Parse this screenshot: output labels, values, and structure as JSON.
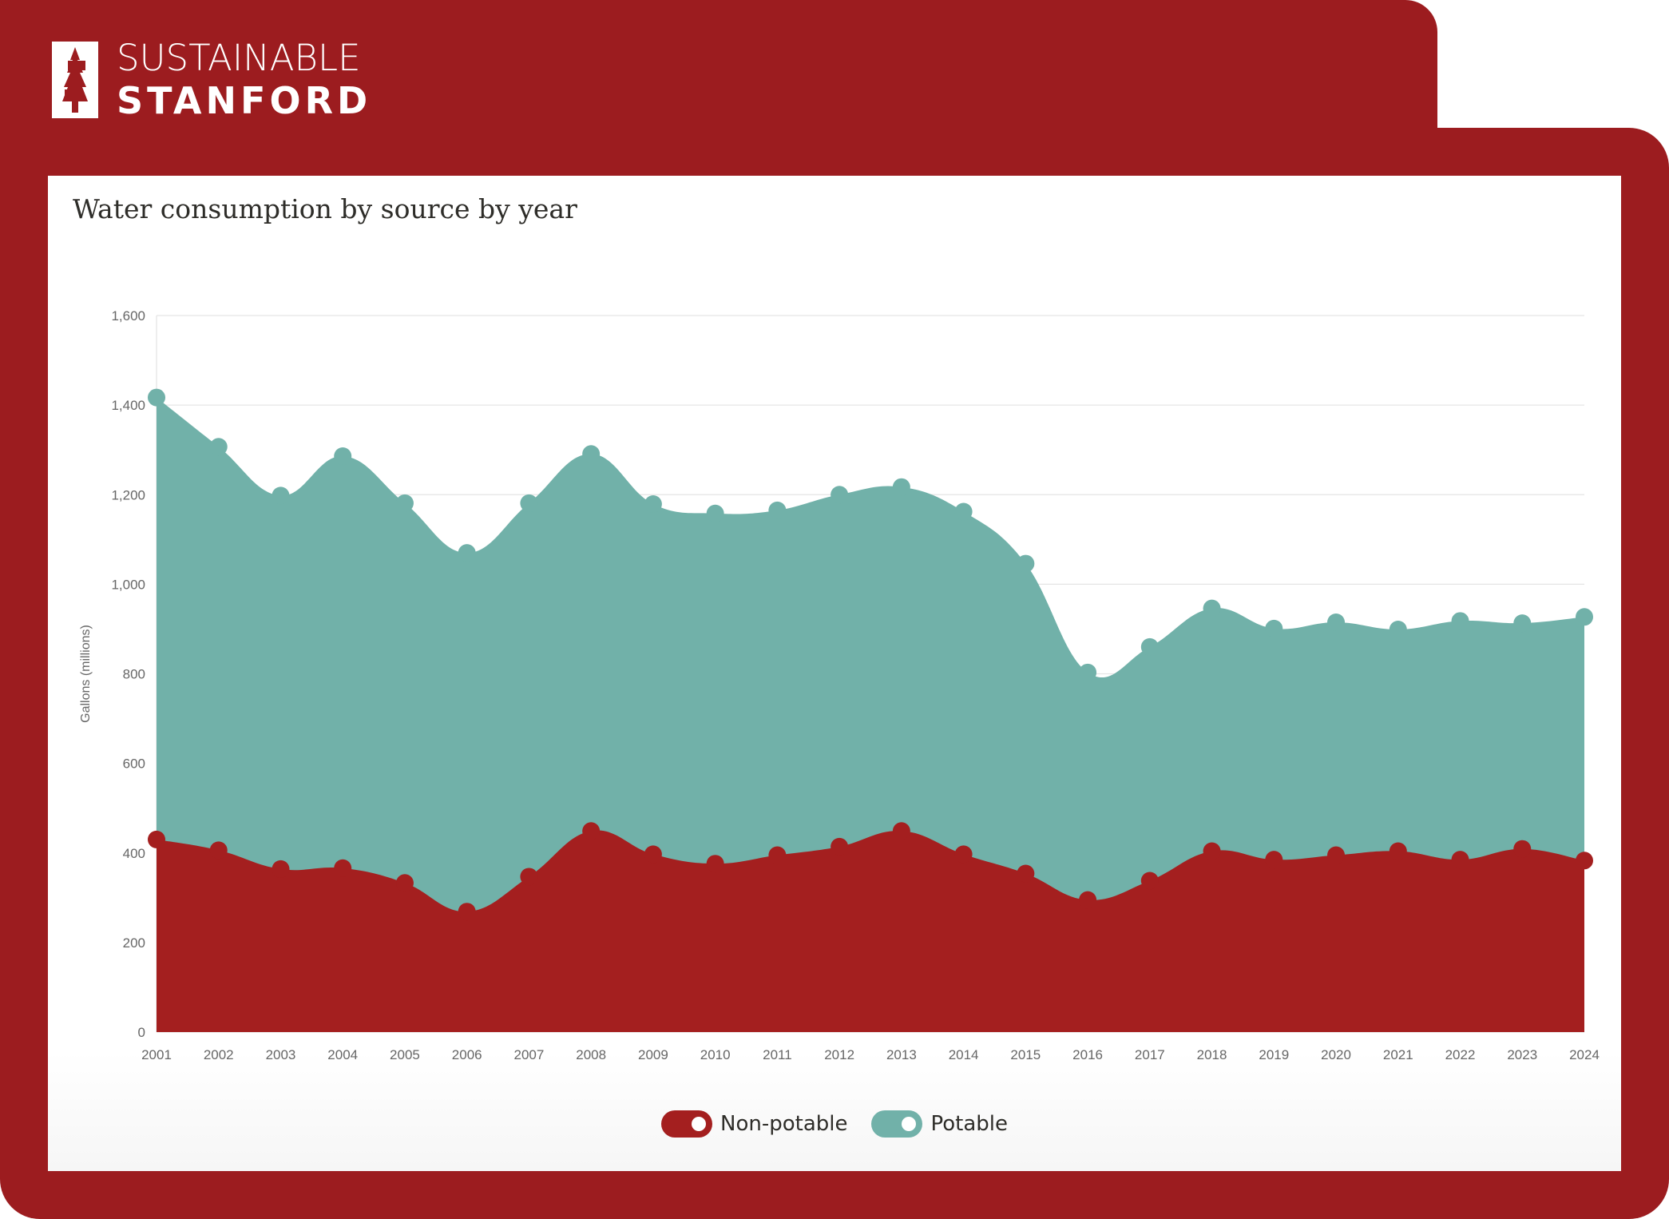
{
  "brand": {
    "line1": "SUSTAINABLE",
    "line2": "STANFORD",
    "color": "#9c1c1f"
  },
  "chart_data": {
    "type": "area",
    "title": "Water consumption by source by year",
    "xlabel": "",
    "ylabel": "Gallons (millions)",
    "ylim": [
      0,
      1600
    ],
    "yticks": [
      "0",
      "200",
      "400",
      "600",
      "800",
      "1,000",
      "1,200",
      "1,400",
      "1,600"
    ],
    "categories": [
      "2001",
      "2002",
      "2003",
      "2004",
      "2005",
      "2006",
      "2007",
      "2008",
      "2009",
      "2010",
      "2011",
      "2012",
      "2013",
      "2014",
      "2015",
      "2016",
      "2017",
      "2018",
      "2019",
      "2020",
      "2021",
      "2022",
      "2023",
      "2024"
    ],
    "grid": true,
    "legend": "bottom",
    "series": [
      {
        "name": "Non-potable",
        "color": "#a41f1f",
        "values": [
          430,
          406,
          364,
          366,
          333,
          269,
          347,
          449,
          397,
          376,
          395,
          414,
          449,
          397,
          354,
          295,
          338,
          404,
          385,
          395,
          404,
          385,
          409,
          383
        ]
      },
      {
        "name": "Potable",
        "color": "#71b1a9",
        "values": [
          1417,
          1307,
          1198,
          1286,
          1181,
          1070,
          1181,
          1291,
          1179,
          1158,
          1165,
          1200,
          1217,
          1162,
          1046,
          803,
          860,
          946,
          901,
          915,
          899,
          918,
          913,
          927
        ]
      }
    ]
  }
}
